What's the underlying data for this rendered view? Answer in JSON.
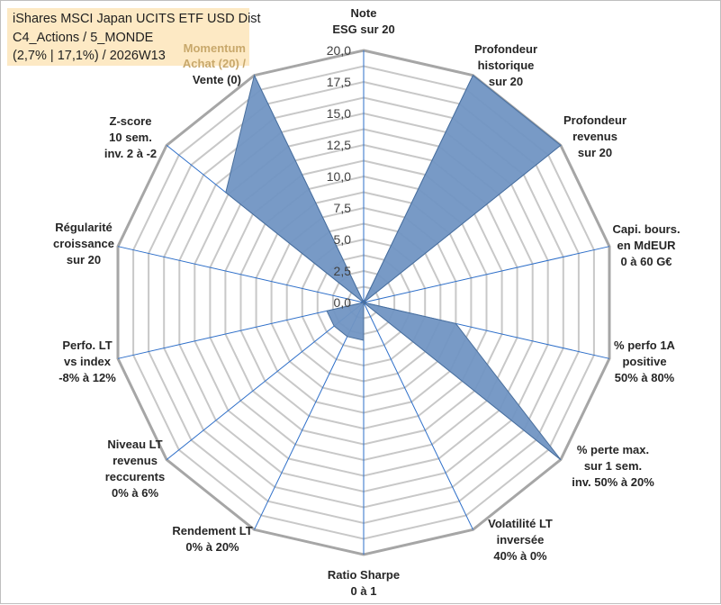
{
  "info": {
    "line1": "iShares MSCI Japan UCITS ETF USD Dist",
    "line2": "C4_Actions / 5_MONDE",
    "line3": "(2,7% | 17,1%) / 2026W13",
    "momentum": [
      "Momentum",
      "Achat (20) /",
      "Vente (0)"
    ]
  },
  "chart_data": {
    "type": "radar",
    "title": "iShares MSCI Japan UCITS ETF USD Dist",
    "rmin": 0,
    "rmax": 20,
    "rings": 16,
    "ticks": [
      "0,0",
      "2,5",
      "5,0",
      "7,5",
      "10,0",
      "12,5",
      "15,0",
      "17,5",
      "20,0"
    ],
    "axes": [
      [
        "Note",
        "ESG sur 20"
      ],
      [
        "Profondeur",
        "historique",
        "sur 20"
      ],
      [
        "Profondeur",
        "revenus",
        "sur 20"
      ],
      [
        "Capi. bours.",
        "en MdEUR",
        "0 à 60 G€"
      ],
      [
        "% perfo 1A",
        "positive",
        "50% à 80%"
      ],
      [
        "% perte max.",
        "sur 1 sem.",
        "inv. 50% à 20%"
      ],
      [
        "Volatilité LT",
        "inversée",
        "40% à 0%"
      ],
      [
        "Ratio Sharpe",
        "0 à 1"
      ],
      [
        "Rendement LT",
        "0% à 20%"
      ],
      [
        "Niveau LT",
        "revenus",
        "reccurents",
        "0% à 6%"
      ],
      [
        "Perfo. LT",
        "vs index",
        "-8% à 12%"
      ],
      [
        "Régularité",
        "croissance",
        "sur 20"
      ],
      [
        "Z-score",
        "10 sem.",
        "inv. 2 à -2"
      ],
      [
        "Momentum",
        "Achat (20) /",
        "Vente (0)"
      ]
    ],
    "series": [
      {
        "name": "iShares MSCI Japan UCITS ETF USD Dist",
        "values": [
          0,
          20,
          20,
          0,
          7.5,
          20,
          0,
          3,
          3,
          3,
          3,
          0,
          14,
          20
        ]
      }
    ],
    "colors": {
      "fill": "#7195c3",
      "stroke": "#4a6f9c",
      "grid": "#c8c8c8",
      "spoke": "#2e6fc9",
      "outer": "#a6a6a6"
    }
  }
}
